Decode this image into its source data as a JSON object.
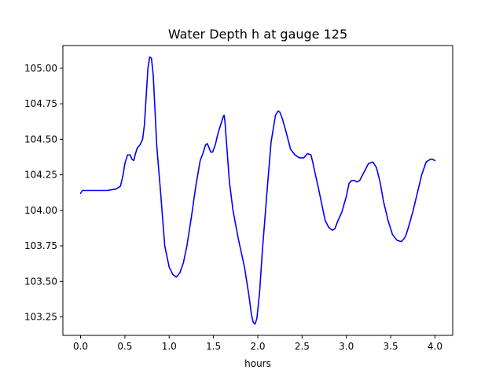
{
  "chart_data": {
    "type": "line",
    "title": "Water Depth h at gauge 125",
    "xlabel": "hours",
    "ylabel": "",
    "xlim": [
      -0.2,
      4.2
    ],
    "ylim": [
      103.12,
      105.16
    ],
    "grid": false,
    "xticks": [
      0.0,
      0.5,
      1.0,
      1.5,
      2.0,
      2.5,
      3.0,
      3.5,
      4.0
    ],
    "xtick_labels": [
      "0.0",
      "0.5",
      "1.0",
      "1.5",
      "2.0",
      "2.5",
      "3.0",
      "3.5",
      "4.0"
    ],
    "yticks": [
      103.25,
      103.5,
      103.75,
      104.0,
      104.25,
      104.5,
      104.75,
      105.0
    ],
    "ytick_labels": [
      "103.25",
      "103.50",
      "103.75",
      "104.00",
      "104.25",
      "104.50",
      "104.75",
      "105.00"
    ],
    "colors": {
      "series": "#0000ff"
    },
    "series": [
      {
        "color": "#0000ff",
        "x": [
          0.0,
          0.02,
          0.1,
          0.2,
          0.3,
          0.4,
          0.45,
          0.48,
          0.5,
          0.53,
          0.56,
          0.58,
          0.6,
          0.62,
          0.64,
          0.67,
          0.7,
          0.72,
          0.74,
          0.76,
          0.78,
          0.8,
          0.82,
          0.84,
          0.86,
          0.9,
          0.95,
          1.0,
          1.04,
          1.08,
          1.12,
          1.16,
          1.2,
          1.25,
          1.3,
          1.35,
          1.38,
          1.41,
          1.43,
          1.45,
          1.47,
          1.49,
          1.52,
          1.55,
          1.58,
          1.61,
          1.62,
          1.63,
          1.65,
          1.68,
          1.72,
          1.78,
          1.85,
          1.9,
          1.93,
          1.95,
          1.97,
          1.99,
          2.02,
          2.05,
          2.1,
          2.15,
          2.2,
          2.23,
          2.25,
          2.28,
          2.32,
          2.37,
          2.42,
          2.47,
          2.52,
          2.56,
          2.6,
          2.62,
          2.64,
          2.68,
          2.72,
          2.76,
          2.8,
          2.84,
          2.87,
          2.9,
          2.95,
          3.0,
          3.03,
          3.06,
          3.09,
          3.12,
          3.15,
          3.2,
          3.25,
          3.3,
          3.34,
          3.38,
          3.42,
          3.47,
          3.52,
          3.57,
          3.62,
          3.65,
          3.67,
          3.7,
          3.75,
          3.8,
          3.85,
          3.9,
          3.95,
          3.97,
          4.0
        ],
        "y": [
          104.12,
          104.14,
          104.14,
          104.14,
          104.14,
          104.15,
          104.17,
          104.25,
          104.33,
          104.39,
          104.39,
          104.36,
          104.35,
          104.4,
          104.44,
          104.46,
          104.5,
          104.6,
          104.8,
          105.0,
          105.08,
          105.07,
          104.95,
          104.7,
          104.45,
          104.15,
          103.75,
          103.6,
          103.55,
          103.53,
          103.56,
          103.63,
          103.75,
          103.95,
          104.17,
          104.35,
          104.4,
          104.46,
          104.47,
          104.44,
          104.41,
          104.41,
          104.46,
          104.54,
          104.6,
          104.66,
          104.67,
          104.62,
          104.45,
          104.2,
          104.0,
          103.8,
          103.6,
          103.4,
          103.26,
          103.21,
          103.2,
          103.24,
          103.42,
          103.7,
          104.1,
          104.48,
          104.67,
          104.7,
          104.69,
          104.64,
          104.55,
          104.43,
          104.39,
          104.37,
          104.37,
          104.4,
          104.39,
          104.34,
          104.28,
          104.17,
          104.05,
          103.93,
          103.88,
          103.86,
          103.87,
          103.92,
          103.99,
          104.1,
          104.19,
          104.21,
          104.21,
          104.2,
          104.21,
          104.27,
          104.33,
          104.34,
          104.3,
          104.2,
          104.06,
          103.93,
          103.83,
          103.79,
          103.78,
          103.8,
          103.82,
          103.88,
          103.99,
          104.12,
          104.25,
          104.34,
          104.36,
          104.36,
          104.35
        ]
      }
    ]
  }
}
